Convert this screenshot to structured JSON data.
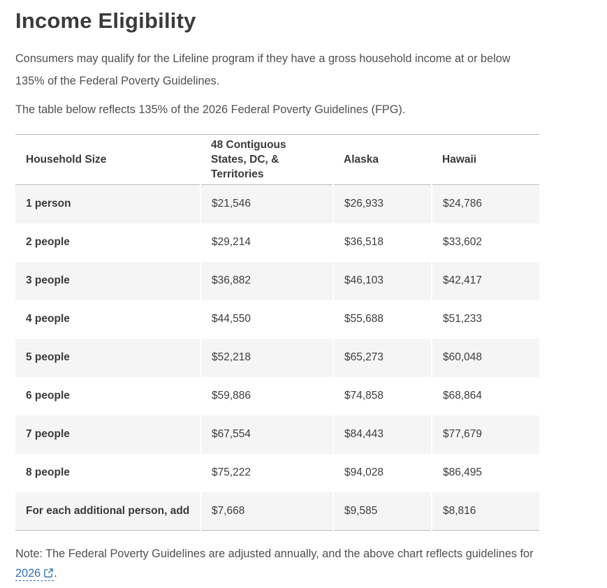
{
  "page": {
    "title": "Income Eligibility",
    "intro_1": "Consumers may qualify for the Lifeline program if they have a gross household income at or below 135% of the Federal Poverty Guidelines.",
    "intro_2": "The table below reflects 135% of the 2026 Federal Poverty Guidelines (FPG).",
    "note_prefix": "Note: The Federal Poverty Guidelines are adjusted annually, and the above chart reflects guidelines for ",
    "note_link_label": "2026",
    "note_suffix": "."
  },
  "table": {
    "columns": [
      "Household Size",
      "48 Contiguous States, DC, & Territories",
      "Alaska",
      "Hawaii"
    ],
    "rows": [
      {
        "label": "1 person",
        "values": [
          "$21,546",
          "$26,933",
          "$24,786"
        ]
      },
      {
        "label": "2 people",
        "values": [
          "$29,214",
          "$36,518",
          "$33,602"
        ]
      },
      {
        "label": "3 people",
        "values": [
          "$36,882",
          "$46,103",
          "$42,417"
        ]
      },
      {
        "label": "4 people",
        "values": [
          "$44,550",
          "$55,688",
          "$51,233"
        ]
      },
      {
        "label": "5 people",
        "values": [
          "$52,218",
          "$65,273",
          "$60,048"
        ]
      },
      {
        "label": "6 people",
        "values": [
          "$59,886",
          "$74,858",
          "$68,864"
        ]
      },
      {
        "label": "7 people",
        "values": [
          "$67,554",
          "$84,443",
          "$77,679"
        ]
      },
      {
        "label": "8 people",
        "values": [
          "$75,222",
          "$94,028",
          "$86,495"
        ]
      },
      {
        "label": "For each additional person, add",
        "values": [
          "$7,668",
          "$9,585",
          "$8,816"
        ]
      }
    ]
  },
  "icons": {
    "external_link": "external-link-icon"
  },
  "colors": {
    "heading": "#3b3b3b",
    "body_text": "#4f4f4f",
    "table_text": "#3d3d3d",
    "row_stripe": "#f5f5f5",
    "rule": "#bcbcbc",
    "link": "#3273b5"
  }
}
